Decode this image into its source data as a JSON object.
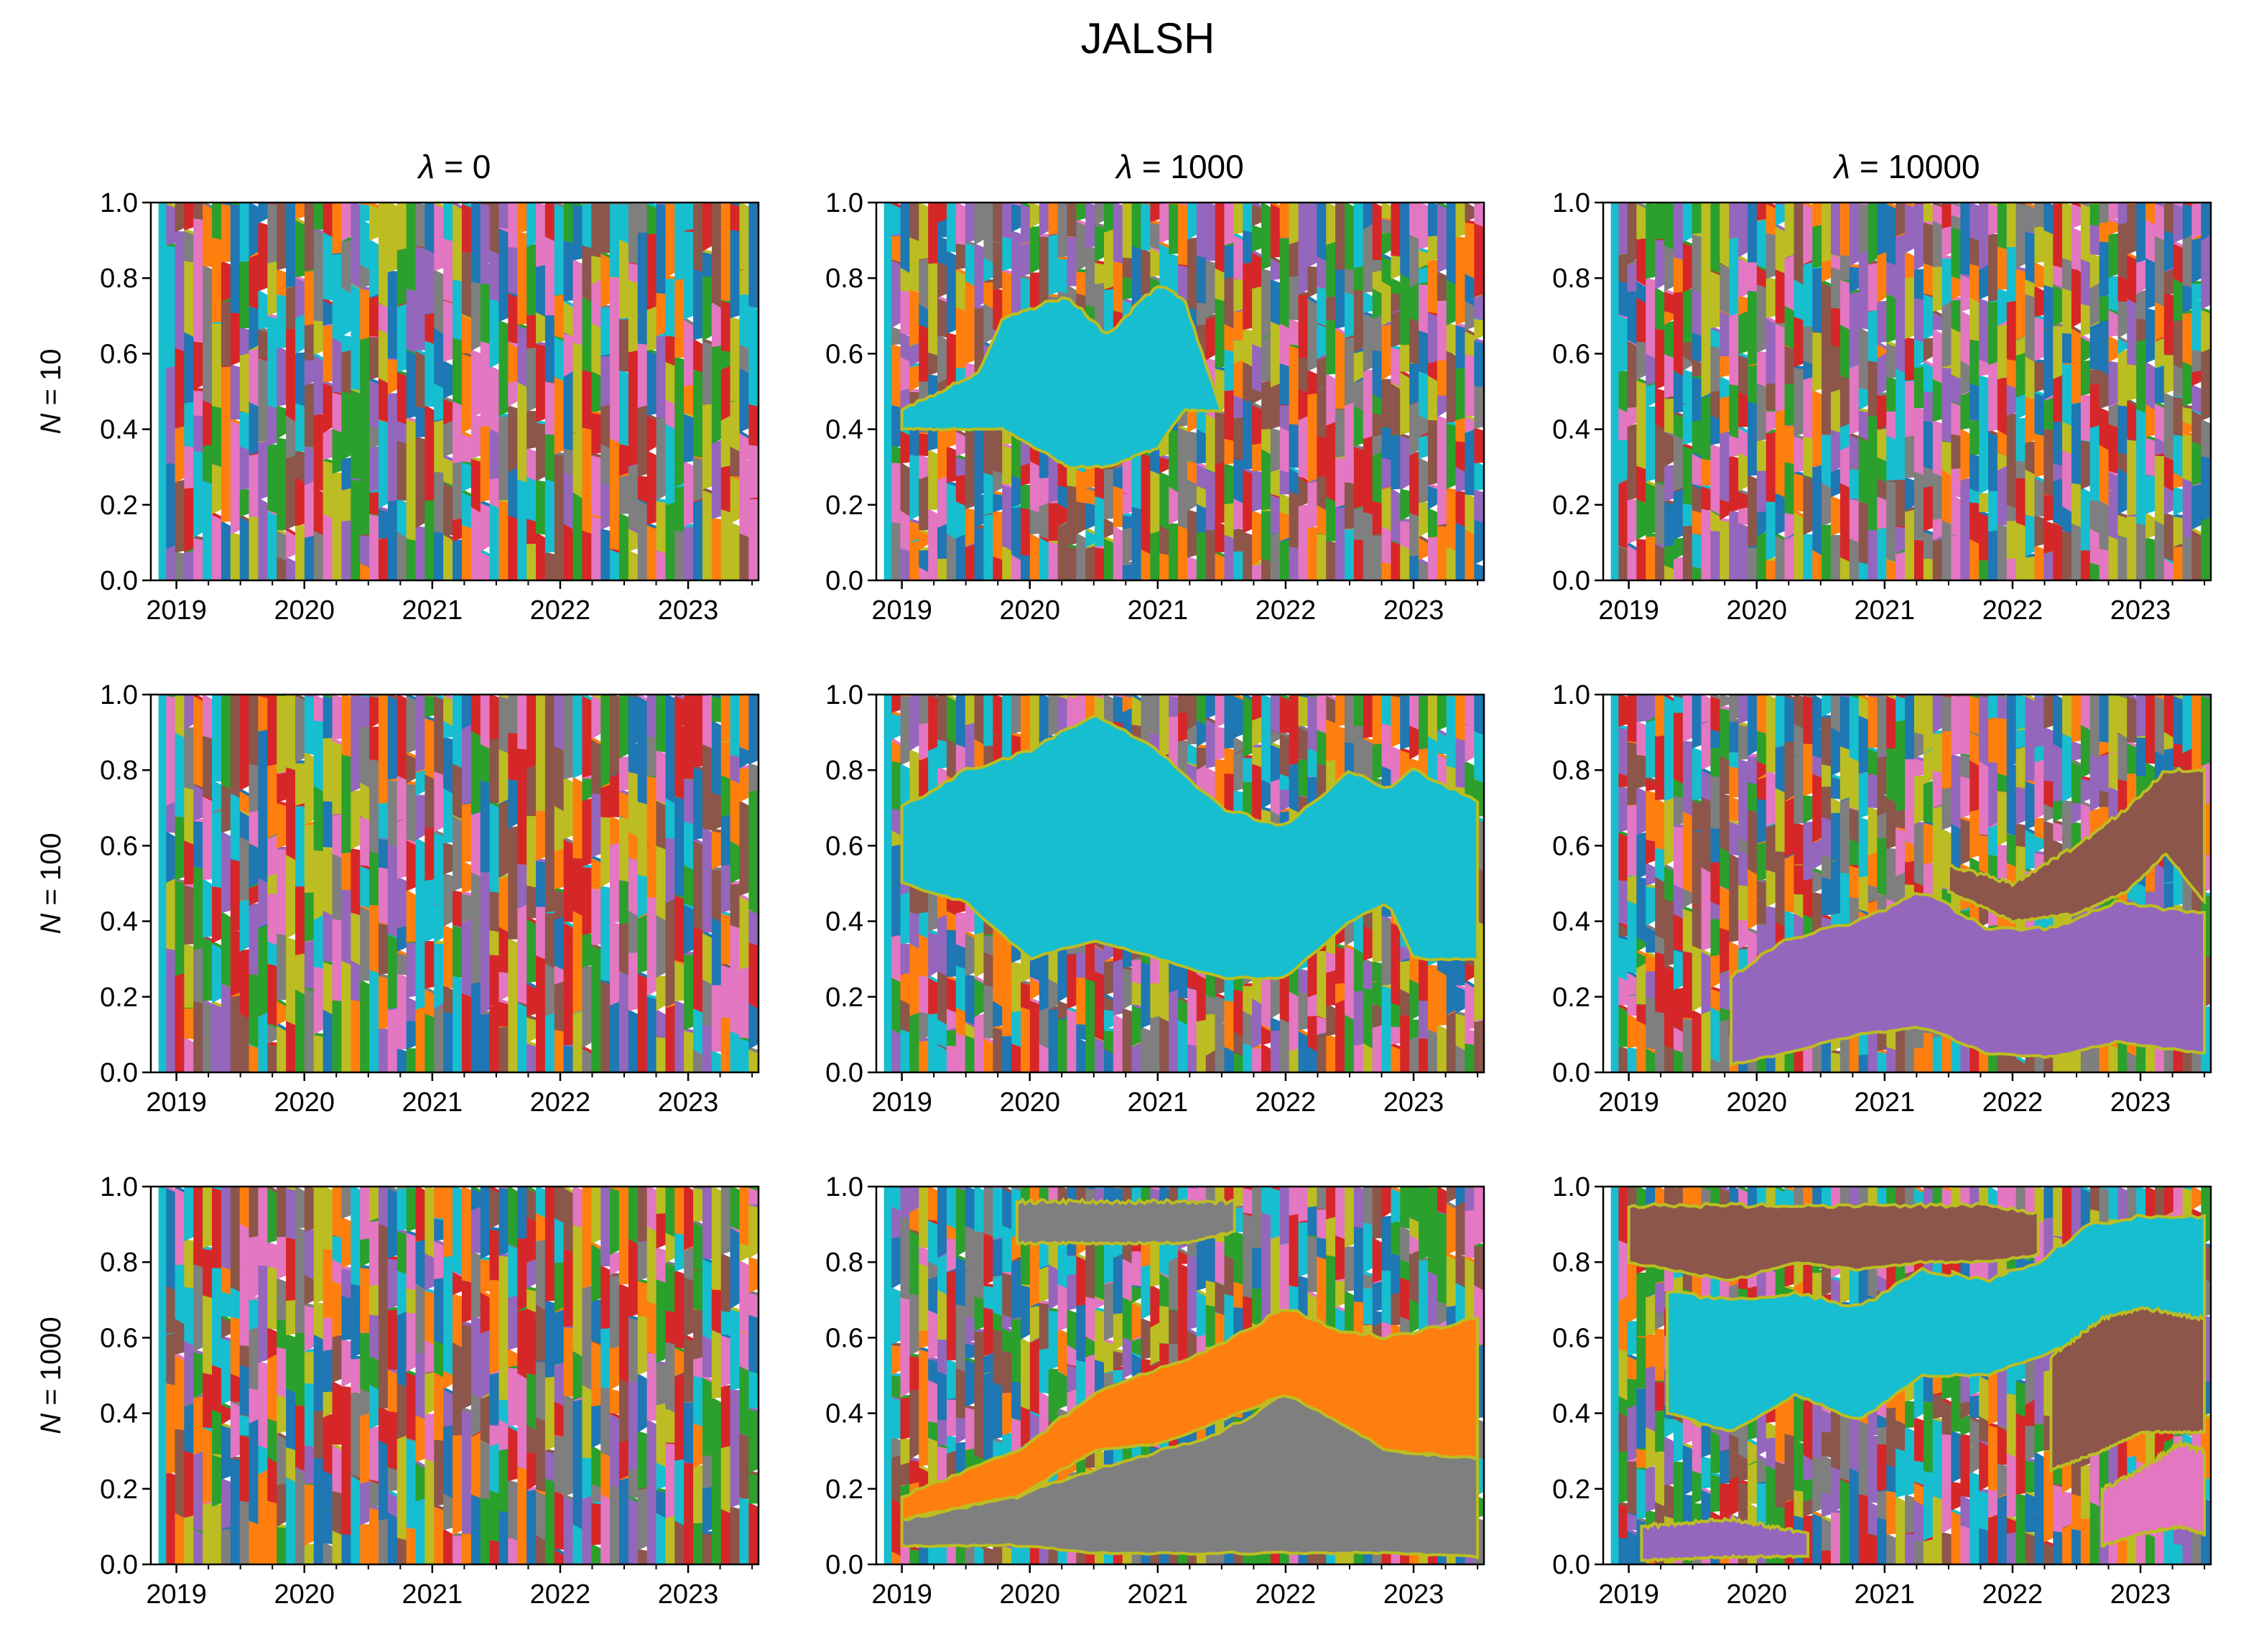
{
  "chart_data": {
    "type": "area",
    "title": "JALSH",
    "subtype": "stacked portfolio weights (100% stacked area), 3x3 grid of panels",
    "grid": false,
    "legend": "none",
    "ylim": [
      0,
      1
    ],
    "y_ticks": [
      "0.0",
      "0.2",
      "0.4",
      "0.6",
      "0.8",
      "1.0"
    ],
    "x_ticks": [
      "2019",
      "2020",
      "2021",
      "2022",
      "2023"
    ],
    "xlim": [
      2018.8,
      2023.55
    ],
    "column_labels": [
      {
        "symbol": "λ",
        "text": " = 0"
      },
      {
        "symbol": "λ",
        "text": " = 1000"
      },
      {
        "symbol": "λ",
        "text": " = 10000"
      }
    ],
    "row_labels": [
      {
        "symbol": "N",
        "text": " = 10"
      },
      {
        "symbol": "N",
        "text": " = 100"
      },
      {
        "symbol": "N",
        "text": " = 1000"
      }
    ],
    "palette": [
      "#1f77b4",
      "#ff7f0e",
      "#2ca02c",
      "#d62728",
      "#9467bd",
      "#8c564b",
      "#e377c2",
      "#7f7f7f",
      "#bcbd22",
      "#17becf"
    ],
    "panels": [
      {
        "row": 0,
        "col": 0,
        "lambda": 0,
        "N": 10,
        "pattern": "high turnover, many small weights, frequent rebalancing",
        "dominant": []
      },
      {
        "row": 0,
        "col": 1,
        "lambda": 1000,
        "N": 10,
        "pattern": "large cyan block in mid-band",
        "dominant": [
          {
            "color": "#17becf",
            "x": [
              2019.0,
              2019.6,
              2019.8,
              2020.3,
              2020.6,
              2021.0,
              2021.2,
              2021.5
            ],
            "low": [
              0.4,
              0.4,
              0.4,
              0.3,
              0.3,
              0.35,
              0.45,
              0.45
            ],
            "high": [
              0.45,
              0.55,
              0.7,
              0.75,
              0.65,
              0.78,
              0.75,
              0.45
            ]
          }
        ]
      },
      {
        "row": 0,
        "col": 2,
        "lambda": 10000,
        "N": 10,
        "pattern": "high turnover, many small weights",
        "dominant": []
      },
      {
        "row": 1,
        "col": 0,
        "lambda": 0,
        "N": 100,
        "pattern": "high turnover, many small weights",
        "dominant": []
      },
      {
        "row": 1,
        "col": 1,
        "lambda": 1000,
        "N": 100,
        "pattern": "persistent cyan band",
        "dominant": [
          {
            "color": "#17becf",
            "x": [
              2019.0,
              2019.5,
              2020.0,
              2020.5,
              2021.0,
              2021.5,
              2022.0,
              2022.5,
              2022.8,
              2023.0,
              2023.5
            ],
            "low": [
              0.5,
              0.45,
              0.3,
              0.35,
              0.3,
              0.25,
              0.25,
              0.4,
              0.45,
              0.3,
              0.3
            ],
            "high": [
              0.7,
              0.8,
              0.85,
              0.95,
              0.85,
              0.7,
              0.65,
              0.8,
              0.75,
              0.8,
              0.72
            ]
          }
        ]
      },
      {
        "row": 1,
        "col": 2,
        "lambda": 10000,
        "N": 100,
        "pattern": "large purple block at bottom, brown on top",
        "dominant": [
          {
            "color": "#9467bd",
            "x": [
              2019.8,
              2020.2,
              2020.8,
              2021.3,
              2021.8,
              2022.3,
              2022.8,
              2023.5
            ],
            "low": [
              0.02,
              0.05,
              0.1,
              0.12,
              0.05,
              0.04,
              0.08,
              0.05
            ],
            "high": [
              0.25,
              0.35,
              0.4,
              0.48,
              0.38,
              0.38,
              0.45,
              0.42
            ]
          },
          {
            "color": "#8c564b",
            "x": [
              2021.5,
              2022.0,
              2022.5,
              2022.9,
              2023.2,
              2023.5
            ],
            "low": [
              0.48,
              0.4,
              0.42,
              0.48,
              0.58,
              0.45
            ],
            "high": [
              0.55,
              0.5,
              0.6,
              0.7,
              0.8,
              0.8
            ]
          }
        ]
      },
      {
        "row": 2,
        "col": 0,
        "lambda": 0,
        "N": 1000,
        "pattern": "high turnover, many small weights",
        "dominant": []
      },
      {
        "row": 2,
        "col": 1,
        "lambda": 1000,
        "N": 1000,
        "pattern": "grey block at bottom, orange wedge above",
        "dominant": [
          {
            "color": "#7f7f7f",
            "x": [
              2019.0,
              2019.9,
              2020.5,
              2021.0,
              2021.5,
              2022.0,
              2022.4,
              2022.8,
              2023.5
            ],
            "low": [
              0.05,
              0.05,
              0.03,
              0.03,
              0.03,
              0.03,
              0.03,
              0.03,
              0.02
            ],
            "high": [
              0.12,
              0.18,
              0.25,
              0.3,
              0.35,
              0.45,
              0.4,
              0.3,
              0.28
            ]
          },
          {
            "color": "#ff7f0e",
            "x": [
              2019.0,
              2019.9,
              2020.5,
              2021.0,
              2021.5,
              2022.0,
              2022.4,
              2022.8,
              2023.5
            ],
            "low": [
              0.12,
              0.18,
              0.3,
              0.32,
              0.38,
              0.45,
              0.38,
              0.3,
              0.28
            ],
            "high": [
              0.18,
              0.3,
              0.45,
              0.52,
              0.58,
              0.68,
              0.62,
              0.6,
              0.65
            ]
          },
          {
            "color": "#7f7f7f",
            "x": [
              2019.9,
              2020.5,
              2021.2,
              2021.6
            ],
            "low": [
              0.85,
              0.85,
              0.85,
              0.88
            ],
            "high": [
              0.96,
              0.96,
              0.96,
              0.96
            ]
          }
        ]
      },
      {
        "row": 2,
        "col": 2,
        "lambda": 10000,
        "N": 1000,
        "pattern": "brown block top, cyan middle, pink and purple bottom",
        "dominant": [
          {
            "color": "#8c564b",
            "x": [
              2019.0,
              2019.8,
              2020.3,
              2020.8,
              2021.3,
              2021.8,
              2022.2
            ],
            "low": [
              0.8,
              0.75,
              0.8,
              0.78,
              0.8,
              0.8,
              0.82
            ],
            "high": [
              0.95,
              0.95,
              0.95,
              0.95,
              0.95,
              0.95,
              0.93
            ]
          },
          {
            "color": "#17becf",
            "x": [
              2019.3,
              2019.8,
              2020.3,
              2020.8,
              2021.3,
              2021.8,
              2022.2,
              2022.6,
              2023.0,
              2023.5
            ],
            "low": [
              0.4,
              0.35,
              0.45,
              0.38,
              0.5,
              0.5,
              0.55,
              0.6,
              0.65,
              0.65
            ],
            "high": [
              0.72,
              0.7,
              0.72,
              0.68,
              0.78,
              0.75,
              0.8,
              0.9,
              0.92,
              0.92
            ]
          },
          {
            "color": "#8c564b",
            "x": [
              2022.3,
              2022.7,
              2023.0,
              2023.5
            ],
            "low": [
              0.25,
              0.3,
              0.35,
              0.35
            ],
            "high": [
              0.55,
              0.65,
              0.68,
              0.65
            ]
          },
          {
            "color": "#e377c2",
            "x": [
              2022.7,
              2023.0,
              2023.3,
              2023.5
            ],
            "low": [
              0.05,
              0.08,
              0.1,
              0.08
            ],
            "high": [
              0.2,
              0.25,
              0.32,
              0.3
            ]
          },
          {
            "color": "#9467bd",
            "x": [
              2019.1,
              2019.8,
              2020.4
            ],
            "low": [
              0.01,
              0.02,
              0.02
            ],
            "high": [
              0.1,
              0.12,
              0.08
            ]
          }
        ]
      }
    ]
  }
}
